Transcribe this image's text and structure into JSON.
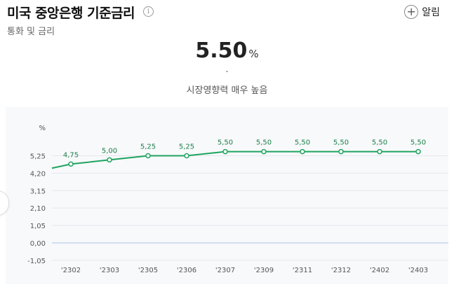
{
  "header": {
    "title": "미국 중앙은행 기준금리",
    "subtitle": "통화 및 금리",
    "info_icon": "info-icon",
    "alarm_icon": "plus-circle-icon",
    "alarm_label": "알림"
  },
  "summary": {
    "value": "5.50",
    "unit": "%",
    "change": "-",
    "impact": "시장영향력 매우 높음"
  },
  "colors": {
    "line": "#1fa45f",
    "label": "#1a7f48",
    "zero_line": "#a9c4e6",
    "panel": "#f8f9fb"
  },
  "chart_data": {
    "type": "line",
    "yunit": "%",
    "yticks": [
      "5,25",
      "4,20",
      "3,15",
      "2,10",
      "1,05",
      "0,00",
      "-1,05"
    ],
    "ylim": [
      -1.05,
      6.3
    ],
    "grid": true,
    "x": [
      "'2302",
      "'2303",
      "'2305",
      "'2306",
      "'2307",
      "'2309",
      "'2311",
      "'2312",
      "'2402",
      "'2403"
    ],
    "values": [
      4.75,
      5.0,
      5.25,
      5.25,
      5.5,
      5.5,
      5.5,
      5.5,
      5.5,
      5.5
    ],
    "value_labels": [
      "4,75",
      "5,00",
      "5,25",
      "5,25",
      "5,50",
      "5,50",
      "5,50",
      "5,50",
      "5,50",
      "5,50"
    ],
    "left_edge_value": 4.5
  }
}
